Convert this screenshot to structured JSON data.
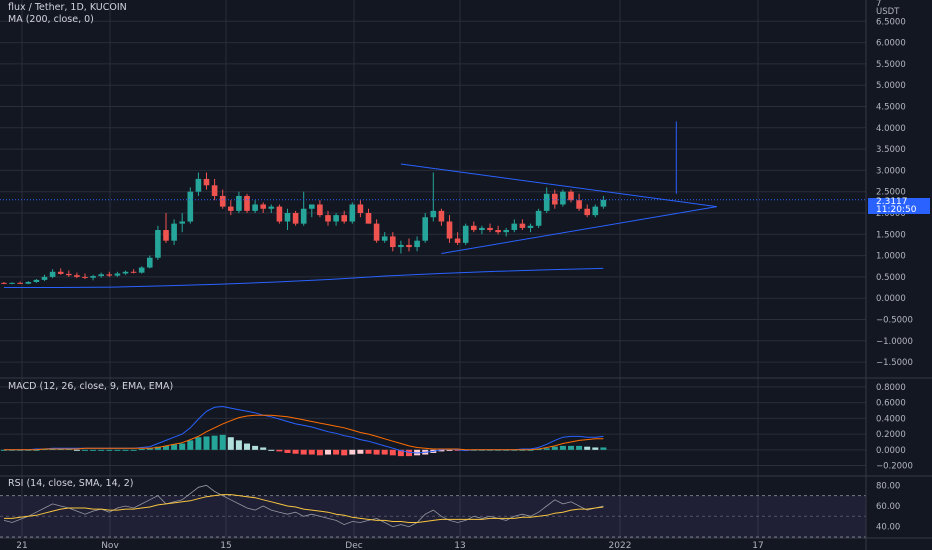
{
  "header": {
    "symbol_line": "flux / Tether, 1D, KUCOIN",
    "ma_line": "MA (200, close, 0)",
    "macd_line": "MACD (12, 26, close, 9, EMA, EMA)",
    "rsi_line": "RSI (14, close, SMA, 14, 2)",
    "currency_top": "7",
    "currency": "USDT"
  },
  "price_badge": {
    "price": "2.3117",
    "countdown": "11:20:50"
  },
  "colors": {
    "background": "#131722",
    "grid": "#2a2e39",
    "up": "#26a69a",
    "down": "#ef5350",
    "trendline": "#2962ff",
    "ma_line": "#2962ff",
    "macd_line": "#2962ff",
    "signal_line": "#ff6d00",
    "hist_up_strong": "#26a69a",
    "hist_up_weak": "#b2dfdb",
    "hist_down_strong": "#ff5252",
    "hist_down_weak": "#ffcdd2",
    "rsi_line": "#7e57c2",
    "rsi_ma": "#f7c53f",
    "axis_text": "#b2b5be"
  },
  "chart_data": [
    {
      "type": "candlestick",
      "name": "price",
      "y_ticks": [
        6.5,
        6.0,
        5.5,
        5.0,
        4.5,
        4.0,
        3.5,
        3.0,
        2.5,
        2.0,
        1.5,
        1.0,
        0.5,
        0.0,
        -0.5,
        -1.0,
        -1.5
      ],
      "y_tick_labels": [
        "6.5000",
        "6.0000",
        "5.5000",
        "5.0000",
        "4.5000",
        "4.0000",
        "3.5000",
        "3.0000",
        "2.5000",
        "2.0000",
        "1.5000",
        "1.0000",
        "0.5000",
        "0.0000",
        "−0.5000",
        "−1.0000",
        "−1.5000"
      ],
      "ylim": [
        -1.85,
        7.0
      ],
      "x_tick_labels": [
        "21",
        "Nov",
        "15",
        "Dec",
        "13",
        "2022",
        "17"
      ],
      "candles": [
        {
          "o": 0.36,
          "h": 0.38,
          "l": 0.33,
          "c": 0.35
        },
        {
          "o": 0.35,
          "h": 0.37,
          "l": 0.33,
          "c": 0.36
        },
        {
          "o": 0.36,
          "h": 0.39,
          "l": 0.34,
          "c": 0.34
        },
        {
          "o": 0.34,
          "h": 0.4,
          "l": 0.33,
          "c": 0.38
        },
        {
          "o": 0.38,
          "h": 0.45,
          "l": 0.36,
          "c": 0.43
        },
        {
          "o": 0.43,
          "h": 0.55,
          "l": 0.4,
          "c": 0.5
        },
        {
          "o": 0.5,
          "h": 0.68,
          "l": 0.47,
          "c": 0.62
        },
        {
          "o": 0.62,
          "h": 0.7,
          "l": 0.55,
          "c": 0.57
        },
        {
          "o": 0.57,
          "h": 0.65,
          "l": 0.5,
          "c": 0.54
        },
        {
          "o": 0.54,
          "h": 0.6,
          "l": 0.47,
          "c": 0.5
        },
        {
          "o": 0.5,
          "h": 0.58,
          "l": 0.45,
          "c": 0.48
        },
        {
          "o": 0.48,
          "h": 0.55,
          "l": 0.42,
          "c": 0.52
        },
        {
          "o": 0.52,
          "h": 0.6,
          "l": 0.48,
          "c": 0.56
        },
        {
          "o": 0.56,
          "h": 0.62,
          "l": 0.5,
          "c": 0.53
        },
        {
          "o": 0.53,
          "h": 0.62,
          "l": 0.5,
          "c": 0.58
        },
        {
          "o": 0.58,
          "h": 0.65,
          "l": 0.55,
          "c": 0.62
        },
        {
          "o": 0.62,
          "h": 0.68,
          "l": 0.58,
          "c": 0.6
        },
        {
          "o": 0.6,
          "h": 0.75,
          "l": 0.58,
          "c": 0.72
        },
        {
          "o": 0.72,
          "h": 1.0,
          "l": 0.7,
          "c": 0.95
        },
        {
          "o": 0.95,
          "h": 1.7,
          "l": 0.9,
          "c": 1.6
        },
        {
          "o": 1.6,
          "h": 2.0,
          "l": 1.3,
          "c": 1.35
        },
        {
          "o": 1.35,
          "h": 1.85,
          "l": 1.25,
          "c": 1.75
        },
        {
          "o": 1.75,
          "h": 2.0,
          "l": 1.55,
          "c": 1.8
        },
        {
          "o": 1.8,
          "h": 2.6,
          "l": 1.75,
          "c": 2.5
        },
        {
          "o": 2.5,
          "h": 2.95,
          "l": 2.4,
          "c": 2.8
        },
        {
          "o": 2.8,
          "h": 2.95,
          "l": 2.55,
          "c": 2.65
        },
        {
          "o": 2.65,
          "h": 2.8,
          "l": 2.3,
          "c": 2.4
        },
        {
          "o": 2.4,
          "h": 2.55,
          "l": 2.1,
          "c": 2.15
        },
        {
          "o": 2.15,
          "h": 2.3,
          "l": 1.95,
          "c": 2.05
        },
        {
          "o": 2.05,
          "h": 2.5,
          "l": 2.0,
          "c": 2.4
        },
        {
          "o": 2.4,
          "h": 2.45,
          "l": 2.0,
          "c": 2.05
        },
        {
          "o": 2.05,
          "h": 2.3,
          "l": 2.0,
          "c": 2.2
        },
        {
          "o": 2.2,
          "h": 2.25,
          "l": 2.0,
          "c": 2.1
        },
        {
          "o": 2.1,
          "h": 2.2,
          "l": 2.0,
          "c": 2.15
        },
        {
          "o": 2.15,
          "h": 2.2,
          "l": 1.75,
          "c": 1.8
        },
        {
          "o": 1.8,
          "h": 2.1,
          "l": 1.6,
          "c": 2.0
        },
        {
          "o": 2.0,
          "h": 2.05,
          "l": 1.7,
          "c": 1.75
        },
        {
          "o": 1.75,
          "h": 2.5,
          "l": 1.7,
          "c": 2.1
        },
        {
          "o": 2.1,
          "h": 2.2,
          "l": 1.9,
          "c": 2.2
        },
        {
          "o": 2.2,
          "h": 2.3,
          "l": 1.9,
          "c": 1.95
        },
        {
          "o": 1.95,
          "h": 2.05,
          "l": 1.7,
          "c": 1.8
        },
        {
          "o": 1.8,
          "h": 2.0,
          "l": 1.7,
          "c": 1.95
        },
        {
          "o": 1.95,
          "h": 2.05,
          "l": 1.75,
          "c": 1.8
        },
        {
          "o": 1.8,
          "h": 2.25,
          "l": 1.75,
          "c": 2.2
        },
        {
          "o": 2.2,
          "h": 2.3,
          "l": 1.9,
          "c": 2.0
        },
        {
          "o": 2.0,
          "h": 2.1,
          "l": 1.75,
          "c": 1.75
        },
        {
          "o": 1.75,
          "h": 1.85,
          "l": 1.3,
          "c": 1.35
        },
        {
          "o": 1.35,
          "h": 1.55,
          "l": 1.3,
          "c": 1.45
        },
        {
          "o": 1.45,
          "h": 1.55,
          "l": 1.1,
          "c": 1.2
        },
        {
          "o": 1.2,
          "h": 1.35,
          "l": 1.05,
          "c": 1.25
        },
        {
          "o": 1.25,
          "h": 1.4,
          "l": 1.1,
          "c": 1.2
        },
        {
          "o": 1.2,
          "h": 1.45,
          "l": 1.1,
          "c": 1.35
        },
        {
          "o": 1.35,
          "h": 2.0,
          "l": 1.3,
          "c": 1.9
        },
        {
          "o": 1.9,
          "h": 2.95,
          "l": 1.8,
          "c": 2.05
        },
        {
          "o": 2.05,
          "h": 2.1,
          "l": 1.7,
          "c": 1.8
        },
        {
          "o": 1.8,
          "h": 1.95,
          "l": 1.3,
          "c": 1.4
        },
        {
          "o": 1.4,
          "h": 1.55,
          "l": 1.25,
          "c": 1.3
        },
        {
          "o": 1.3,
          "h": 1.75,
          "l": 1.25,
          "c": 1.7
        },
        {
          "o": 1.7,
          "h": 1.8,
          "l": 1.55,
          "c": 1.6
        },
        {
          "o": 1.6,
          "h": 1.7,
          "l": 1.5,
          "c": 1.65
        },
        {
          "o": 1.65,
          "h": 1.75,
          "l": 1.55,
          "c": 1.6
        },
        {
          "o": 1.6,
          "h": 1.7,
          "l": 1.5,
          "c": 1.55
        },
        {
          "o": 1.55,
          "h": 1.65,
          "l": 1.45,
          "c": 1.6
        },
        {
          "o": 1.6,
          "h": 1.85,
          "l": 1.55,
          "c": 1.75
        },
        {
          "o": 1.75,
          "h": 1.85,
          "l": 1.6,
          "c": 1.65
        },
        {
          "o": 1.65,
          "h": 1.75,
          "l": 1.55,
          "c": 1.7
        },
        {
          "o": 1.7,
          "h": 2.1,
          "l": 1.65,
          "c": 2.05
        },
        {
          "o": 2.05,
          "h": 2.6,
          "l": 2.0,
          "c": 2.45
        },
        {
          "o": 2.45,
          "h": 2.55,
          "l": 2.1,
          "c": 2.2
        },
        {
          "o": 2.2,
          "h": 2.55,
          "l": 2.15,
          "c": 2.5
        },
        {
          "o": 2.5,
          "h": 2.55,
          "l": 2.25,
          "c": 2.3
        },
        {
          "o": 2.3,
          "h": 2.45,
          "l": 2.05,
          "c": 2.1
        },
        {
          "o": 2.1,
          "h": 2.2,
          "l": 1.9,
          "c": 1.95
        },
        {
          "o": 1.95,
          "h": 2.2,
          "l": 1.9,
          "c": 2.15
        },
        {
          "o": 2.15,
          "h": 2.4,
          "l": 2.1,
          "c": 2.31
        }
      ],
      "ma200": [
        0.25,
        0.25,
        0.26,
        0.29,
        0.33,
        0.38,
        0.44,
        0.52,
        0.58,
        0.63,
        0.67,
        0.7
      ],
      "trendlines": [
        {
          "x1": 49,
          "y1": 3.15,
          "x2": 88,
          "y2": 2.15
        },
        {
          "x1": 54,
          "y1": 1.05,
          "x2": 88,
          "y2": 2.15
        },
        {
          "x1": 83,
          "y1": 4.15,
          "x2": 83,
          "y2": 2.45
        }
      ]
    },
    {
      "type": "macd",
      "name": "MACD",
      "y_tick_labels": [
        "0.8000",
        "0.6000",
        "0.4000",
        "0.2000",
        "0.0000",
        "−0.2000"
      ],
      "y_ticks": [
        0.8,
        0.6,
        0.4,
        0.2,
        0.0,
        -0.2
      ],
      "ylim": [
        -0.32,
        0.9
      ],
      "histogram": [
        0.0,
        0.0,
        0.0,
        0.0,
        0.0,
        0.01,
        0.01,
        0.01,
        0.01,
        0.0,
        0.0,
        0.0,
        0.0,
        0.0,
        0.0,
        0.0,
        0.0,
        0.01,
        0.02,
        0.04,
        0.05,
        0.07,
        0.08,
        0.12,
        0.16,
        0.17,
        0.18,
        0.19,
        0.16,
        0.12,
        0.08,
        0.05,
        0.03,
        0.0,
        -0.02,
        -0.04,
        -0.05,
        -0.06,
        -0.06,
        -0.07,
        -0.06,
        -0.06,
        -0.07,
        -0.06,
        -0.05,
        -0.05,
        -0.06,
        -0.06,
        -0.07,
        -0.08,
        -0.08,
        -0.07,
        -0.06,
        -0.04,
        -0.02,
        -0.01,
        -0.01,
        0.0,
        0.0,
        0.0,
        0.0,
        0.0,
        0.0,
        0.0,
        0.0,
        0.0,
        0.01,
        0.02,
        0.04,
        0.05,
        0.05,
        0.05,
        0.04,
        0.03,
        0.03
      ],
      "macd": [
        0.0,
        0.0,
        0.0,
        0.0,
        0.01,
        0.01,
        0.02,
        0.02,
        0.02,
        0.02,
        0.02,
        0.02,
        0.02,
        0.02,
        0.02,
        0.02,
        0.02,
        0.03,
        0.04,
        0.08,
        0.12,
        0.16,
        0.2,
        0.28,
        0.39,
        0.49,
        0.54,
        0.55,
        0.53,
        0.51,
        0.49,
        0.47,
        0.44,
        0.42,
        0.39,
        0.36,
        0.33,
        0.31,
        0.29,
        0.26,
        0.23,
        0.21,
        0.18,
        0.16,
        0.13,
        0.11,
        0.08,
        0.05,
        0.02,
        -0.01,
        -0.03,
        -0.04,
        -0.03,
        -0.02,
        0.0,
        0.01,
        0.0,
        -0.01,
        0.0,
        0.0,
        0.0,
        0.0,
        0.0,
        0.0,
        0.01,
        0.01,
        0.03,
        0.07,
        0.12,
        0.16,
        0.17,
        0.17,
        0.16,
        0.16,
        0.17
      ],
      "signal": [
        0.0,
        0.0,
        0.0,
        0.0,
        0.0,
        0.01,
        0.01,
        0.01,
        0.01,
        0.01,
        0.02,
        0.02,
        0.02,
        0.02,
        0.02,
        0.02,
        0.02,
        0.02,
        0.02,
        0.03,
        0.05,
        0.07,
        0.09,
        0.13,
        0.17,
        0.23,
        0.28,
        0.33,
        0.37,
        0.41,
        0.43,
        0.44,
        0.44,
        0.44,
        0.43,
        0.42,
        0.4,
        0.38,
        0.36,
        0.34,
        0.32,
        0.3,
        0.28,
        0.25,
        0.22,
        0.2,
        0.17,
        0.14,
        0.11,
        0.08,
        0.05,
        0.03,
        0.02,
        0.01,
        0.01,
        0.01,
        0.01,
        0.0,
        0.0,
        0.0,
        0.0,
        0.0,
        0.0,
        0.0,
        0.0,
        0.0,
        0.01,
        0.03,
        0.05,
        0.08,
        0.1,
        0.12,
        0.13,
        0.14,
        0.14
      ]
    },
    {
      "type": "line",
      "name": "RSI",
      "y_tick_labels": [
        "80.00",
        "60.00",
        "40.00"
      ],
      "y_ticks": [
        80,
        60,
        40
      ],
      "ylim": [
        30,
        88
      ],
      "band": [
        30,
        70
      ],
      "rsi": [
        46,
        44,
        47,
        50,
        54,
        58,
        62,
        60,
        58,
        55,
        52,
        55,
        57,
        54,
        58,
        60,
        58,
        62,
        66,
        70,
        62,
        64,
        66,
        72,
        78,
        80,
        74,
        70,
        66,
        62,
        58,
        56,
        60,
        56,
        54,
        52,
        54,
        50,
        52,
        50,
        48,
        46,
        42,
        45,
        44,
        46,
        48,
        44,
        40,
        42,
        40,
        44,
        52,
        56,
        50,
        46,
        44,
        46,
        50,
        48,
        50,
        48,
        46,
        50,
        52,
        50,
        54,
        60,
        66,
        62,
        64,
        60,
        56,
        58,
        60
      ],
      "rsi_ma": [
        48,
        48,
        49,
        50,
        51,
        53,
        55,
        57,
        58,
        58,
        58,
        57,
        57,
        56,
        56,
        57,
        57,
        58,
        59,
        61,
        62,
        63,
        64,
        65,
        67,
        69,
        70,
        71,
        71,
        70,
        69,
        68,
        66,
        64,
        62,
        60,
        59,
        57,
        56,
        55,
        54,
        52,
        51,
        49,
        48,
        47,
        46,
        46,
        45,
        45,
        44,
        44,
        45,
        46,
        47,
        47,
        47,
        47,
        47,
        47,
        48,
        48,
        48,
        48,
        49,
        49,
        50,
        51,
        53,
        54,
        56,
        57,
        57,
        58,
        59
      ]
    }
  ]
}
